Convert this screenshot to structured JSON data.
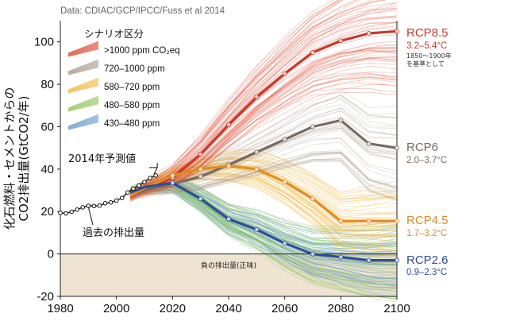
{
  "chart_data": {
    "type": "line",
    "source": "Data: CDIAC/GCP/IPCC/Fuss et al 2014",
    "ylabel": "化石燃料・セメントからの CO2排出量(GtCO2/年)",
    "xlabel": "",
    "xlim": [
      1980,
      2100
    ],
    "ylim": [
      -20,
      110
    ],
    "x_ticks": [
      1980,
      2000,
      2020,
      2040,
      2060,
      2080,
      2100
    ],
    "y_ticks": [
      -20,
      0,
      20,
      40,
      60,
      80,
      100
    ],
    "x_tick_labels": [
      "1980",
      "2000",
      "2020",
      "2040",
      "2060",
      "2080",
      "2100"
    ],
    "y_tick_labels": [
      "-20",
      "0",
      "20",
      "40",
      "60",
      "80",
      "100"
    ],
    "legend": {
      "title": "シナリオ区分",
      "position": "top-left",
      "entries": [
        {
          "label": ">1000 ppm CO₂eq",
          "color": "#e0604a"
        },
        {
          "label": "720–1000 ppm",
          "color": "#b5a79c"
        },
        {
          "label": "580–720 ppm",
          "color": "#f2c25a"
        },
        {
          "label": "480–580 ppm",
          "color": "#9cca6e"
        },
        {
          "label": "430–480 ppm",
          "color": "#7ea6d4"
        }
      ]
    },
    "historical": {
      "name": "過去の排出量",
      "x": [
        1980,
        1982,
        1984,
        1986,
        1988,
        1990,
        1992,
        1994,
        1996,
        1998,
        2000,
        2002,
        2004,
        2006,
        2008,
        2010,
        2012,
        2014
      ],
      "y": [
        19.4,
        19.1,
        19.9,
        20.9,
        22.0,
        22.7,
        22.6,
        22.8,
        23.9,
        24.3,
        25.2,
        26.4,
        29.0,
        30.8,
        32.3,
        33.9,
        35.8,
        37.0
      ]
    },
    "projection_2014": {
      "label": "2014年予測値",
      "x": 2014,
      "y": 37.0
    },
    "negative_region_label": "負の排出量(正味)",
    "series": [
      {
        "name": "RCP8.5",
        "range": "3.2–5.4°C",
        "note_line1": "1850～1900年",
        "note_line2": "を基準として",
        "color": "#c8392b",
        "x": [
          2005,
          2010,
          2020,
          2030,
          2040,
          2050,
          2060,
          2070,
          2080,
          2090,
          2100
        ],
        "y": [
          27.5,
          30.5,
          36,
          47,
          61,
          74,
          85,
          95,
          100.5,
          104,
          105
        ]
      },
      {
        "name": "RCP6",
        "range": "2.0–3.7°C",
        "color": "#7a6a5e",
        "x": [
          2005,
          2010,
          2020,
          2030,
          2040,
          2050,
          2060,
          2070,
          2080,
          2090,
          2100
        ],
        "y": [
          27.5,
          30,
          33,
          36.5,
          42,
          48,
          54,
          60,
          63,
          52,
          50
        ]
      },
      {
        "name": "RCP4.5",
        "range": "1.7–3.2°C",
        "color": "#e08b26",
        "x": [
          2005,
          2010,
          2020,
          2030,
          2040,
          2050,
          2060,
          2070,
          2080,
          2090,
          2100
        ],
        "y": [
          27.5,
          31,
          37,
          40,
          41.5,
          40,
          34,
          26,
          15.5,
          15.5,
          15.5
        ]
      },
      {
        "name": "RCP2.6",
        "range": "0.9–2.3°C",
        "color": "#2e4e9a",
        "x": [
          2005,
          2010,
          2020,
          2030,
          2040,
          2050,
          2060,
          2070,
          2080,
          2090,
          2100
        ],
        "y": [
          29,
          31.5,
          33.5,
          26,
          16.5,
          11.5,
          5,
          0,
          -1.5,
          -3,
          -3
        ]
      }
    ]
  }
}
